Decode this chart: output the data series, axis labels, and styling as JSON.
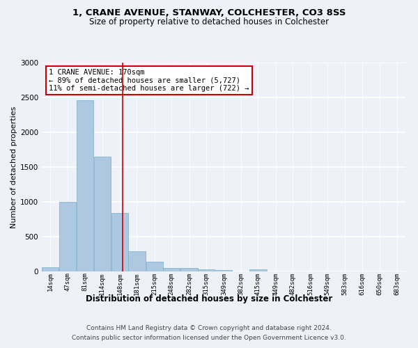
{
  "title1": "1, CRANE AVENUE, STANWAY, COLCHESTER, CO3 8SS",
  "title2": "Size of property relative to detached houses in Colchester",
  "xlabel": "Distribution of detached houses by size in Colchester",
  "ylabel": "Number of detached properties",
  "footnote1": "Contains HM Land Registry data © Crown copyright and database right 2024.",
  "footnote2": "Contains public sector information licensed under the Open Government Licence v3.0.",
  "annotation_line1": "1 CRANE AVENUE: 170sqm",
  "annotation_line2": "← 89% of detached houses are smaller (5,727)",
  "annotation_line3": "11% of semi-detached houses are larger (722) →",
  "bar_edges": [
    14,
    47,
    81,
    114,
    148,
    181,
    215,
    248,
    282,
    315,
    349,
    382,
    415,
    449,
    482,
    516,
    549,
    583,
    616,
    650,
    683
  ],
  "bar_heights": [
    60,
    1000,
    2460,
    1650,
    840,
    295,
    140,
    55,
    55,
    30,
    20,
    0,
    30,
    0,
    0,
    0,
    0,
    0,
    0,
    0
  ],
  "bar_color": "#adc8e0",
  "bar_edgecolor": "#7aafc8",
  "vline_x": 170,
  "vline_color": "#cc0000",
  "ylim": [
    0,
    3000
  ],
  "yticks": [
    0,
    500,
    1000,
    1500,
    2000,
    2500,
    3000
  ],
  "background_color": "#eef2f8",
  "grid_color": "#ffffff",
  "annotation_box_facecolor": "#ffffff",
  "annotation_box_edgecolor": "#cc0000",
  "title1_fontsize": 9.5,
  "title2_fontsize": 8.5,
  "ylabel_fontsize": 8,
  "xlabel_fontsize": 8.5,
  "xtick_fontsize": 6.5,
  "ytick_fontsize": 7.5,
  "footnote_fontsize": 6.5,
  "annotation_fontsize": 7.5
}
